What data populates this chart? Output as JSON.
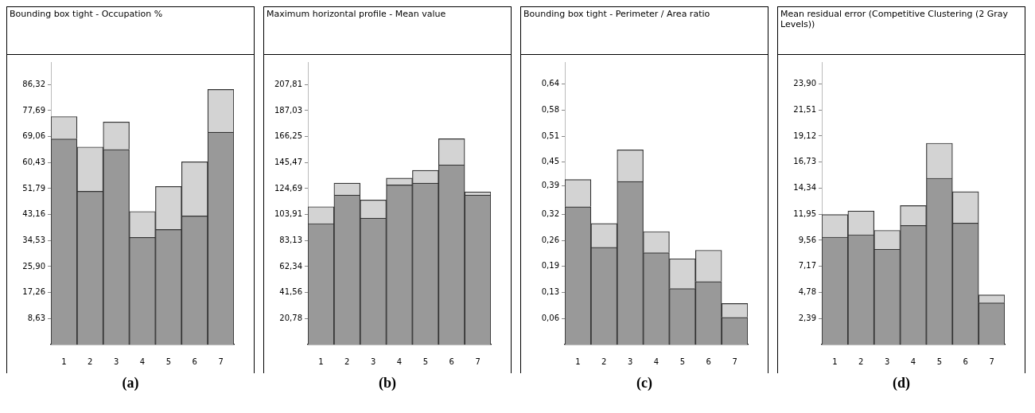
{
  "chart_data": [
    {
      "type": "bar",
      "title": "Bounding box tight - Occupation %",
      "categories": [
        "1",
        "2",
        "3",
        "4",
        "5",
        "6",
        "7"
      ],
      "stacked": true,
      "series": [
        {
          "color": "#999999",
          "values": [
            68.3,
            50.9,
            64.8,
            35.6,
            38.2,
            42.7,
            70.5
          ]
        },
        {
          "color": "#d3d3d3",
          "values": [
            7.4,
            14.7,
            9.1,
            8.6,
            14.3,
            18.0,
            14.2
          ]
        }
      ],
      "ylim": [
        0,
        93.8
      ],
      "yticks": [
        {
          "value": 8.632,
          "label": "8,63"
        },
        {
          "value": 17.264,
          "label": "17,26"
        },
        {
          "value": 25.896,
          "label": "25,90"
        },
        {
          "value": 34.528,
          "label": "34,53"
        },
        {
          "value": 43.16,
          "label": "43,16"
        },
        {
          "value": 51.792,
          "label": "51,79"
        },
        {
          "value": 60.43,
          "label": "60,43"
        },
        {
          "value": 69.056,
          "label": "69,06"
        },
        {
          "value": 77.688,
          "label": "77,69"
        },
        {
          "value": 86.32,
          "label": "86,32"
        }
      ],
      "annotations": [
        "(a)"
      ]
    },
    {
      "type": "bar",
      "title": "Maximum horizontal profile - Mean value",
      "categories": [
        "1",
        "2",
        "3",
        "4",
        "5",
        "6",
        "7"
      ],
      "stacked": true,
      "series": [
        {
          "color": "#999999",
          "values": [
            96.7,
            119.5,
            101.1,
            127.6,
            129.1,
            143.6,
            119.5
          ]
        },
        {
          "color": "#d3d3d3",
          "values": [
            13.5,
            9.6,
            14.5,
            5.4,
            10.1,
            20.9,
            2.5
          ]
        }
      ],
      "ylim": [
        0,
        225.8
      ],
      "yticks": [
        {
          "value": 20.781,
          "label": "20,78"
        },
        {
          "value": 41.562,
          "label": "41,56"
        },
        {
          "value": 62.343,
          "label": "62,34"
        },
        {
          "value": 83.13,
          "label": "83,13"
        },
        {
          "value": 103.905,
          "label": "103,91"
        },
        {
          "value": 124.686,
          "label": "124,69"
        },
        {
          "value": 145.467,
          "label": "145,47"
        },
        {
          "value": 166.248,
          "label": "166,25"
        },
        {
          "value": 187.029,
          "label": "187,03"
        },
        {
          "value": 207.81,
          "label": "207,81"
        }
      ],
      "annotations": [
        "(b)"
      ]
    },
    {
      "type": "bar",
      "title": "Bounding box tight - Perimeter / Area ratio",
      "categories": [
        "1",
        "2",
        "3",
        "4",
        "5",
        "6",
        "7"
      ],
      "stacked": true,
      "series": [
        {
          "color": "#999999",
          "values": [
            0.339,
            0.239,
            0.401,
            0.226,
            0.138,
            0.155,
            0.067
          ]
        },
        {
          "color": "#d3d3d3",
          "values": [
            0.067,
            0.059,
            0.078,
            0.052,
            0.073,
            0.077,
            0.034
          ]
        }
      ],
      "ylim": [
        0,
        0.695
      ],
      "yticks": [
        {
          "value": 0.0641,
          "label": "0,06"
        },
        {
          "value": 0.1282,
          "label": "0,13"
        },
        {
          "value": 0.1923,
          "label": "0,19"
        },
        {
          "value": 0.2564,
          "label": "0,26"
        },
        {
          "value": 0.3205,
          "label": "0,32"
        },
        {
          "value": 0.39,
          "label": "0,39"
        },
        {
          "value": 0.4487,
          "label": "0,45"
        },
        {
          "value": 0.5128,
          "label": "0,51"
        },
        {
          "value": 0.5769,
          "label": "0,58"
        },
        {
          "value": 0.641,
          "label": "0,64"
        }
      ],
      "annotations": [
        "(c)"
      ]
    },
    {
      "type": "bar",
      "title": "Mean residual error (Competitive  Clustering (2 Gray Levels))",
      "categories": [
        "1",
        "2",
        "3",
        "4",
        "5",
        "6",
        "7"
      ],
      "stacked": true,
      "series": [
        {
          "color": "#999999",
          "values": [
            9.85,
            10.07,
            8.74,
            10.92,
            15.25,
            11.14,
            3.82
          ]
        },
        {
          "color": "#d3d3d3",
          "values": [
            2.07,
            2.18,
            1.73,
            1.82,
            3.21,
            2.88,
            0.73
          ]
        }
      ],
      "ylim": [
        0,
        25.9
      ],
      "yticks": [
        {
          "value": 2.39,
          "label": "2,39"
        },
        {
          "value": 4.78,
          "label": "4,78"
        },
        {
          "value": 7.17,
          "label": "7,17"
        },
        {
          "value": 9.56,
          "label": "9,56"
        },
        {
          "value": 11.95,
          "label": "11,95"
        },
        {
          "value": 14.34,
          "label": "14,34"
        },
        {
          "value": 16.73,
          "label": "16,73"
        },
        {
          "value": 19.12,
          "label": "19,12"
        },
        {
          "value": 21.51,
          "label": "21,51"
        },
        {
          "value": 23.9,
          "label": "23,90"
        }
      ],
      "annotations": [
        "(d)"
      ]
    }
  ]
}
